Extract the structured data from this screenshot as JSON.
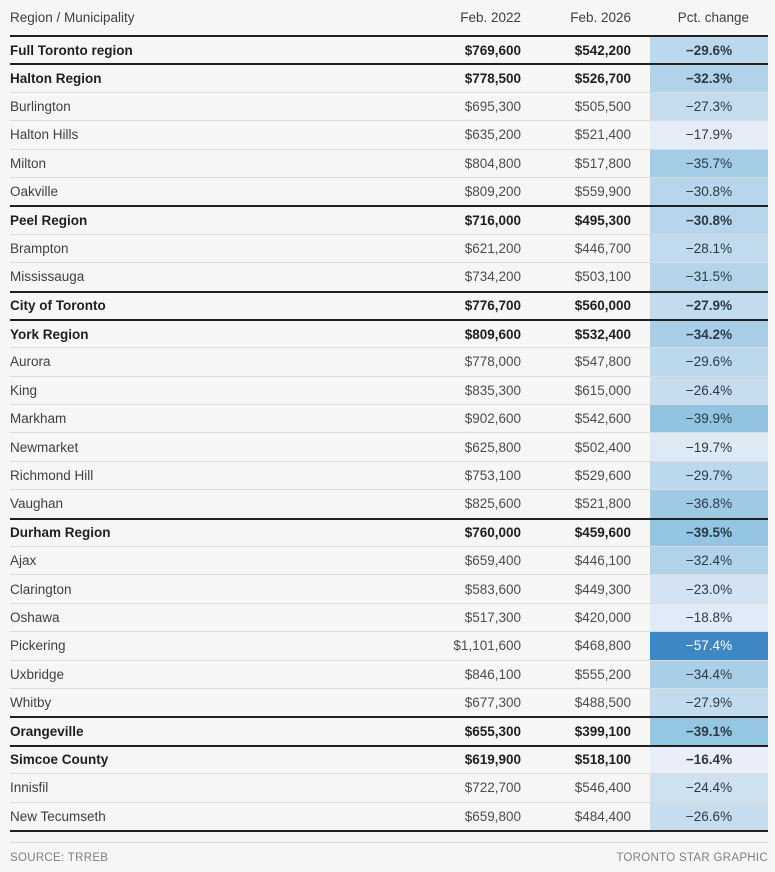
{
  "header": {
    "col_region": "Region / Municipality",
    "col_2022": "Feb. 2022",
    "col_2026": "Feb. 2026",
    "col_pct": "Pct. change"
  },
  "footer": {
    "source": "SOURCE: TRREB",
    "credit": "TORONTO STAR GRAPHIC"
  },
  "colors": {
    "page_background": "#f6f6f5",
    "heavy_rule": "#212121",
    "light_rule": "#dcdcdb",
    "pct_text": "#2b3945",
    "pct_text_inverse": "#ffffff",
    "scale_light_end": "#e9eef9",
    "scale_dark_end": "#3d88c4"
  },
  "chart_data": {
    "type": "table",
    "columns": [
      "Region / Municipality",
      "Feb. 2022",
      "Feb. 2026",
      "Pct. change"
    ],
    "layout_hints": {
      "pct_column_shading": "blue intensity scales with magnitude of decline",
      "color_scale_stops": [
        {
          "pct": -16.4,
          "color": "#e9eef9"
        },
        {
          "pct": -29.6,
          "color": "#bcd8ec"
        },
        {
          "pct": -39.9,
          "color": "#92c4e2"
        },
        {
          "pct": -57.4,
          "color": "#3d88c4"
        }
      ],
      "bold_rows": "region aggregate rows are bold with heavy top rule"
    },
    "rows": [
      {
        "name": "Full Toronto region",
        "bold": true,
        "feb_2022": "$769,600",
        "feb_2026": "$542,200",
        "pct_change": -29.6,
        "pct_label": "−29.6%",
        "cell_bg": "#bcd8ec",
        "cell_fg": "#2b3945"
      },
      {
        "name": "Halton Region",
        "bold": true,
        "feb_2022": "$778,500",
        "feb_2026": "$526,700",
        "pct_change": -32.3,
        "pct_label": "−32.3%",
        "cell_bg": "#b1d3e9",
        "cell_fg": "#2b3945"
      },
      {
        "name": "Burlington",
        "bold": false,
        "feb_2022": "$695,300",
        "feb_2026": "$505,500",
        "pct_change": -27.3,
        "pct_label": "−27.3%",
        "cell_bg": "#c4dcee",
        "cell_fg": "#2b3945"
      },
      {
        "name": "Halton Hills",
        "bold": false,
        "feb_2022": "$635,200",
        "feb_2026": "$521,400",
        "pct_change": -17.9,
        "pct_label": "−17.9%",
        "cell_bg": "#e4ecf8",
        "cell_fg": "#2b3945"
      },
      {
        "name": "Milton",
        "bold": false,
        "feb_2022": "$804,800",
        "feb_2026": "$517,800",
        "pct_change": -35.7,
        "pct_label": "−35.7%",
        "cell_bg": "#a3cce6",
        "cell_fg": "#2b3945"
      },
      {
        "name": "Oakville",
        "bold": false,
        "feb_2022": "$809,200",
        "feb_2026": "$559,900",
        "pct_change": -30.8,
        "pct_label": "−30.8%",
        "cell_bg": "#b7d6eb",
        "cell_fg": "#2b3945"
      },
      {
        "name": "Peel Region",
        "bold": true,
        "feb_2022": "$716,000",
        "feb_2026": "$495,300",
        "pct_change": -30.8,
        "pct_label": "−30.8%",
        "cell_bg": "#b7d6eb",
        "cell_fg": "#2b3945"
      },
      {
        "name": "Brampton",
        "bold": false,
        "feb_2022": "$621,200",
        "feb_2026": "$446,700",
        "pct_change": -28.1,
        "pct_label": "−28.1%",
        "cell_bg": "#c1dbee",
        "cell_fg": "#2b3945"
      },
      {
        "name": "Mississauga",
        "bold": false,
        "feb_2022": "$734,200",
        "feb_2026": "$503,100",
        "pct_change": -31.5,
        "pct_label": "−31.5%",
        "cell_bg": "#b4d4ea",
        "cell_fg": "#2b3945"
      },
      {
        "name": "City of Toronto",
        "bold": true,
        "feb_2022": "$776,700",
        "feb_2026": "$560,000",
        "pct_change": -27.9,
        "pct_label": "−27.9%",
        "cell_bg": "#c2dbee",
        "cell_fg": "#2b3945"
      },
      {
        "name": "York Region",
        "bold": true,
        "feb_2022": "$809,600",
        "feb_2026": "$532,400",
        "pct_change": -34.2,
        "pct_label": "−34.2%",
        "cell_bg": "#a9cfe8",
        "cell_fg": "#2b3945"
      },
      {
        "name": "Aurora",
        "bold": false,
        "feb_2022": "$778,000",
        "feb_2026": "$547,800",
        "pct_change": -29.6,
        "pct_label": "−29.6%",
        "cell_bg": "#bcd8ec",
        "cell_fg": "#2b3945"
      },
      {
        "name": "King",
        "bold": false,
        "feb_2022": "$835,300",
        "feb_2026": "$615,000",
        "pct_change": -26.4,
        "pct_label": "−26.4%",
        "cell_bg": "#c7ddef",
        "cell_fg": "#2b3945"
      },
      {
        "name": "Markham",
        "bold": false,
        "feb_2022": "$902,600",
        "feb_2026": "$542,600",
        "pct_change": -39.9,
        "pct_label": "−39.9%",
        "cell_bg": "#92c4e2",
        "cell_fg": "#2b3945"
      },
      {
        "name": "Newmarket",
        "bold": false,
        "feb_2022": "$625,800",
        "feb_2026": "$502,400",
        "pct_change": -19.7,
        "pct_label": "−19.7%",
        "cell_bg": "#dee9f6",
        "cell_fg": "#2b3945"
      },
      {
        "name": "Richmond Hill",
        "bold": false,
        "feb_2022": "$753,100",
        "feb_2026": "$529,600",
        "pct_change": -29.7,
        "pct_label": "−29.7%",
        "cell_bg": "#bcd8ec",
        "cell_fg": "#2b3945"
      },
      {
        "name": "Vaughan",
        "bold": false,
        "feb_2022": "$825,600",
        "feb_2026": "$521,800",
        "pct_change": -36.8,
        "pct_label": "−36.8%",
        "cell_bg": "#9fcae5",
        "cell_fg": "#2b3945"
      },
      {
        "name": "Durham Region",
        "bold": true,
        "feb_2022": "$760,000",
        "feb_2026": "$459,600",
        "pct_change": -39.5,
        "pct_label": "−39.5%",
        "cell_bg": "#94c5e2",
        "cell_fg": "#2b3945"
      },
      {
        "name": "Ajax",
        "bold": false,
        "feb_2022": "$659,400",
        "feb_2026": "$446,100",
        "pct_change": -32.4,
        "pct_label": "−32.4%",
        "cell_bg": "#b1d3e9",
        "cell_fg": "#2b3945"
      },
      {
        "name": "Clarington",
        "bold": false,
        "feb_2022": "$583,600",
        "feb_2026": "$449,300",
        "pct_change": -23.0,
        "pct_label": "−23.0%",
        "cell_bg": "#d3e3f3",
        "cell_fg": "#2b3945"
      },
      {
        "name": "Oshawa",
        "bold": false,
        "feb_2022": "$517,300",
        "feb_2026": "$420,000",
        "pct_change": -18.8,
        "pct_label": "−18.8%",
        "cell_bg": "#e1eaf7",
        "cell_fg": "#2b3945"
      },
      {
        "name": "Pickering",
        "bold": false,
        "feb_2022": "$1,101,600",
        "feb_2026": "$468,800",
        "pct_change": -57.4,
        "pct_label": "−57.4%",
        "cell_bg": "#3d88c4",
        "cell_fg": "#ffffff"
      },
      {
        "name": "Uxbridge",
        "bold": false,
        "feb_2022": "$846,100",
        "feb_2026": "$555,200",
        "pct_change": -34.4,
        "pct_label": "−34.4%",
        "cell_bg": "#a8cfe7",
        "cell_fg": "#2b3945"
      },
      {
        "name": "Whitby",
        "bold": false,
        "feb_2022": "$677,300",
        "feb_2026": "$488,500",
        "pct_change": -27.9,
        "pct_label": "−27.9%",
        "cell_bg": "#c2dbee",
        "cell_fg": "#2b3945"
      },
      {
        "name": "Orangeville",
        "bold": true,
        "feb_2022": "$655,300",
        "feb_2026": "$399,100",
        "pct_change": -39.1,
        "pct_label": "−39.1%",
        "cell_bg": "#95c6e3",
        "cell_fg": "#2b3945"
      },
      {
        "name": "Simcoe County",
        "bold": true,
        "feb_2022": "$619,900",
        "feb_2026": "$518,100",
        "pct_change": -16.4,
        "pct_label": "−16.4%",
        "cell_bg": "#e9eef9",
        "cell_fg": "#2b3945"
      },
      {
        "name": "Innisfil",
        "bold": false,
        "feb_2022": "$722,700",
        "feb_2026": "$546,400",
        "pct_change": -24.4,
        "pct_label": "−24.4%",
        "cell_bg": "#cee1f1",
        "cell_fg": "#2b3945"
      },
      {
        "name": "New Tecumseth",
        "bold": false,
        "feb_2022": "$659,800",
        "feb_2026": "$484,400",
        "pct_change": -26.6,
        "pct_label": "−26.6%",
        "cell_bg": "#c6ddef",
        "cell_fg": "#2b3945"
      }
    ]
  }
}
